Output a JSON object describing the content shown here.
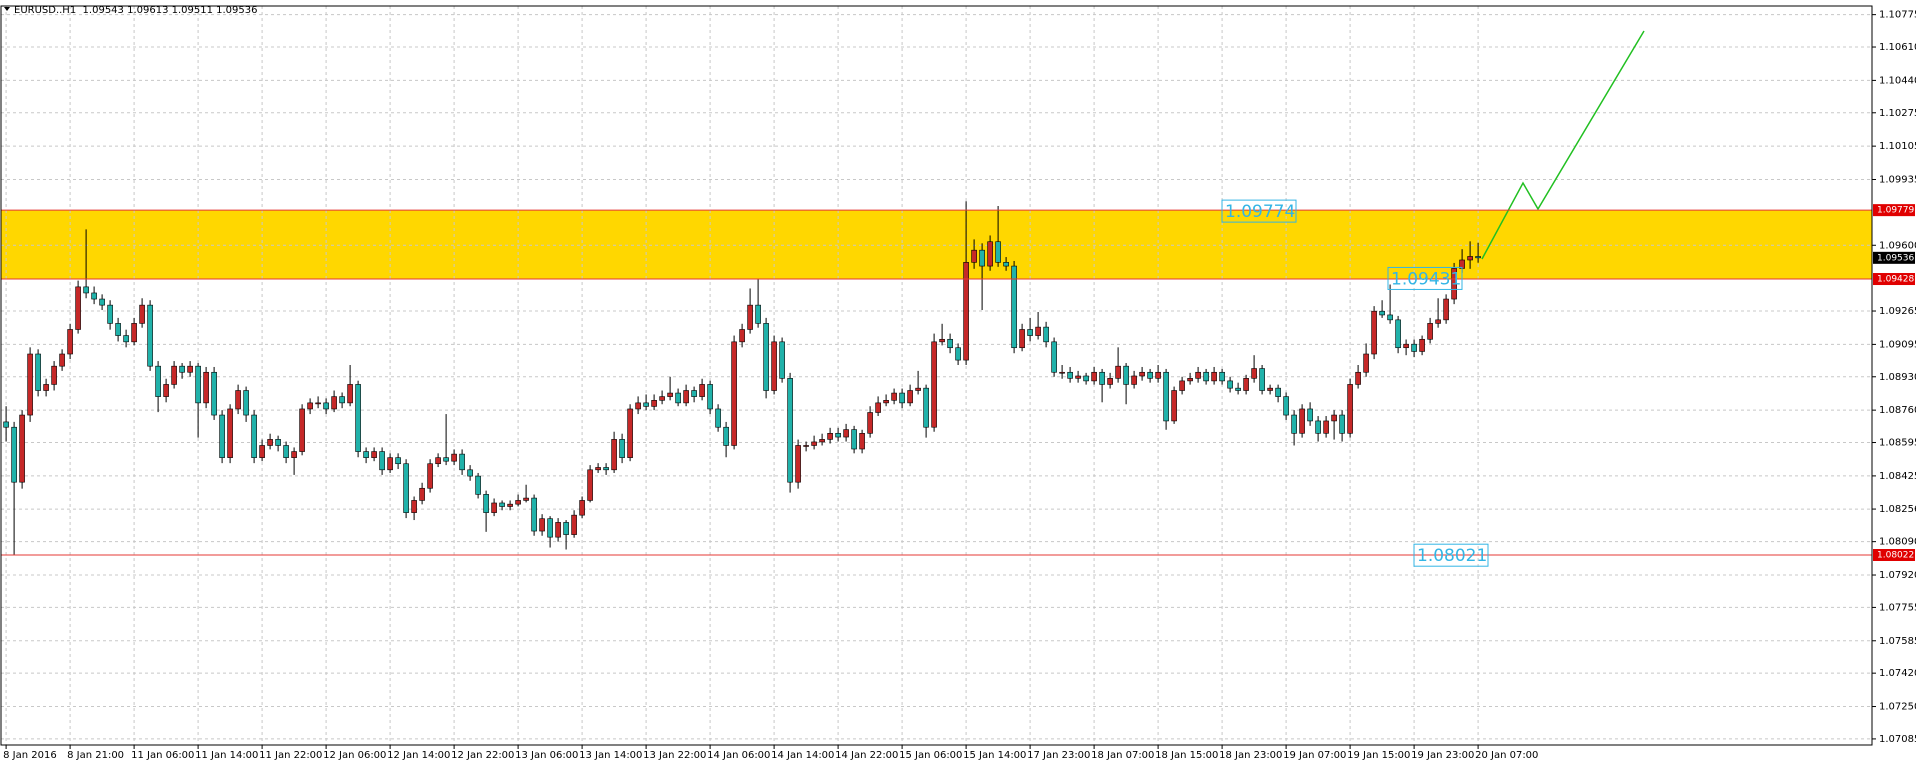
{
  "chart_data": {
    "type": "candlestick",
    "title": "EURUSD..H1  1.09543 1.09613 1.09511 1.09536",
    "up_color": "#c62828",
    "down_color": "#20b2aa",
    "zone": [
      1.09428,
      1.09779
    ],
    "zone_color": "#ffd700",
    "line_color": "#e53935",
    "grid": true,
    "ylim": [
      1.07054,
      1.10819
    ],
    "yticks": [
      {
        "value": 1.10775,
        "label": "1.10775"
      },
      {
        "value": 1.1061,
        "label": "1.10610"
      },
      {
        "value": 1.1044,
        "label": "1.10440"
      },
      {
        "value": 1.10275,
        "label": "1.10275"
      },
      {
        "value": 1.10105,
        "label": "1.10105"
      },
      {
        "value": 1.09935,
        "label": "1.09935"
      },
      {
        "value": 1.096,
        "label": "1.09600"
      },
      {
        "value": 1.09265,
        "label": "1.09265"
      },
      {
        "value": 1.09095,
        "label": "1.09095"
      },
      {
        "value": 1.0893,
        "label": "1.08930"
      },
      {
        "value": 1.0876,
        "label": "1.08760"
      },
      {
        "value": 1.08595,
        "label": "1.08595"
      },
      {
        "value": 1.08425,
        "label": "1.08425"
      },
      {
        "value": 1.08256,
        "label": "1.08256"
      },
      {
        "value": 1.0809,
        "label": "1.08090"
      },
      {
        "value": 1.0792,
        "label": "1.07920"
      },
      {
        "value": 1.07755,
        "label": "1.07755"
      },
      {
        "value": 1.07585,
        "label": "1.07585"
      },
      {
        "value": 1.0742,
        "label": "1.07420"
      },
      {
        "value": 1.0725,
        "label": "1.07250"
      },
      {
        "value": 1.07085,
        "label": "1.07085"
      }
    ],
    "price_tags": [
      {
        "value": 1.09779,
        "color": "#e00000",
        "line": true
      },
      {
        "value": 1.09536,
        "color": "#000000",
        "line": false
      },
      {
        "value": 1.09428,
        "color": "#e00000",
        "line": true
      },
      {
        "value": 1.08022,
        "color": "#e00000",
        "line": true
      }
    ],
    "annotations": [
      1.09774,
      1.09431,
      1.08021
    ],
    "categories": [
      "8 Jan 2016",
      null,
      null,
      null,
      null,
      null,
      null,
      null,
      "8 Jan 21:00",
      null,
      null,
      null,
      null,
      null,
      null,
      null,
      "11 Jan 06:00",
      null,
      null,
      null,
      null,
      null,
      null,
      null,
      "11 Jan 14:00",
      null,
      null,
      null,
      null,
      null,
      null,
      null,
      "11 Jan 22:00",
      null,
      null,
      null,
      null,
      null,
      null,
      null,
      "12 Jan 06:00",
      null,
      null,
      null,
      null,
      null,
      null,
      null,
      "12 Jan 14:00",
      null,
      null,
      null,
      null,
      null,
      null,
      null,
      "12 Jan 22:00",
      null,
      null,
      null,
      null,
      null,
      null,
      null,
      "13 Jan 06:00",
      null,
      null,
      null,
      null,
      null,
      null,
      null,
      "13 Jan 14:00",
      null,
      null,
      null,
      null,
      null,
      null,
      null,
      "13 Jan 22:00",
      null,
      null,
      null,
      null,
      null,
      null,
      null,
      "14 Jan 06:00",
      null,
      null,
      null,
      null,
      null,
      null,
      null,
      "14 Jan 14:00",
      null,
      null,
      null,
      null,
      null,
      null,
      null,
      "14 Jan 22:00",
      null,
      null,
      null,
      null,
      null,
      null,
      null,
      "15 Jan 06:00",
      null,
      null,
      null,
      null,
      null,
      null,
      null,
      "15 Jan 14:00",
      null,
      null,
      null,
      null,
      null,
      null,
      null,
      "17 Jan 23:00",
      null,
      null,
      null,
      null,
      null,
      null,
      null,
      "18 Jan 07:00",
      null,
      null,
      null,
      null,
      null,
      null,
      null,
      "18 Jan 15:00",
      null,
      null,
      null,
      null,
      null,
      null,
      null,
      "18 Jan 23:00",
      null,
      null,
      null,
      null,
      null,
      null,
      null,
      "19 Jan 07:00",
      null,
      null,
      null,
      null,
      null,
      null,
      null,
      "19 Jan 15:00",
      null,
      null,
      null,
      null,
      null,
      null,
      null,
      "19 Jan 23:00",
      null,
      null,
      null,
      null,
      null,
      null,
      null,
      "20 Jan 07:00"
    ],
    "candles": [
      [
        1.087,
        1.0878,
        1.086,
        1.08673
      ],
      [
        1.08673,
        1.087,
        1.0802,
        1.08393
      ],
      [
        1.08393,
        1.0876,
        1.0836,
        1.08735
      ],
      [
        1.08735,
        1.0908,
        1.087,
        1.09046
      ],
      [
        1.09046,
        1.0907,
        1.0883,
        1.0886
      ],
      [
        1.0886,
        1.0892,
        1.0883,
        1.08891
      ],
      [
        1.08891,
        1.0901,
        1.0886,
        1.08984
      ],
      [
        1.08984,
        1.0907,
        1.0896,
        1.09046
      ],
      [
        1.09046,
        1.092,
        1.0902,
        1.09171
      ],
      [
        1.09171,
        1.0942,
        1.0915,
        1.09388
      ],
      [
        1.09388,
        1.09681,
        1.0933,
        1.09357
      ],
      [
        1.09357,
        1.0939,
        1.093,
        1.09326
      ],
      [
        1.09326,
        1.0935,
        1.0927,
        1.09295
      ],
      [
        1.09295,
        1.0932,
        1.0917,
        1.09202
      ],
      [
        1.09202,
        1.0923,
        1.0911,
        1.0914
      ],
      [
        1.0914,
        1.0917,
        1.0908,
        1.09108
      ],
      [
        1.09108,
        1.0923,
        1.0909,
        1.09202
      ],
      [
        1.09202,
        1.0933,
        1.0918,
        1.09295
      ],
      [
        1.09295,
        1.0932,
        1.0896,
        1.08984
      ],
      [
        1.08984,
        1.0901,
        1.0875,
        1.08829
      ],
      [
        1.08829,
        1.0892,
        1.088,
        1.08891
      ],
      [
        1.08891,
        1.0901,
        1.0887,
        1.08984
      ],
      [
        1.08984,
        1.09,
        1.0892,
        1.08953
      ],
      [
        1.08953,
        1.0901,
        1.0893,
        1.08984
      ],
      [
        1.08984,
        1.09,
        1.0862,
        1.08797
      ],
      [
        1.08797,
        1.0898,
        1.0877,
        1.08953
      ],
      [
        1.08953,
        1.0898,
        1.0871,
        1.08735
      ],
      [
        1.08735,
        1.0876,
        1.0849,
        1.08518
      ],
      [
        1.08518,
        1.0879,
        1.0849,
        1.08766
      ],
      [
        1.08766,
        1.0889,
        1.0874,
        1.0886
      ],
      [
        1.0886,
        1.0888,
        1.087,
        1.08735
      ],
      [
        1.08735,
        1.0876,
        1.0849,
        1.08518
      ],
      [
        1.08518,
        1.0861,
        1.085,
        1.0858
      ],
      [
        1.0858,
        1.0864,
        1.0856,
        1.08611
      ],
      [
        1.08611,
        1.0863,
        1.0855,
        1.0858
      ],
      [
        1.0858,
        1.086,
        1.0849,
        1.08518
      ],
      [
        1.08518,
        1.0857,
        1.0843,
        1.08549
      ],
      [
        1.08549,
        1.0879,
        1.0853,
        1.08766
      ],
      [
        1.08766,
        1.0882,
        1.0874,
        1.08797
      ],
      [
        1.08797,
        1.0883,
        1.0877,
        1.08797
      ],
      [
        1.08797,
        1.0882,
        1.0874,
        1.08766
      ],
      [
        1.08766,
        1.0886,
        1.0875,
        1.08829
      ],
      [
        1.08829,
        1.0885,
        1.0877,
        1.08797
      ],
      [
        1.08797,
        1.0899,
        1.0878,
        1.08891
      ],
      [
        1.08891,
        1.0891,
        1.0852,
        1.08549
      ],
      [
        1.08549,
        1.0857,
        1.0849,
        1.08518
      ],
      [
        1.08518,
        1.0857,
        1.085,
        1.08549
      ],
      [
        1.08549,
        1.0857,
        1.0843,
        1.08456
      ],
      [
        1.08456,
        1.0854,
        1.0844,
        1.08518
      ],
      [
        1.08518,
        1.0854,
        1.0846,
        1.08487
      ],
      [
        1.08487,
        1.0851,
        1.0821,
        1.08238
      ],
      [
        1.08238,
        1.0832,
        1.082,
        1.083
      ],
      [
        1.083,
        1.0839,
        1.0828,
        1.08362
      ],
      [
        1.08362,
        1.0851,
        1.0834,
        1.08487
      ],
      [
        1.08487,
        1.0854,
        1.0847,
        1.08518
      ],
      [
        1.08518,
        1.0874,
        1.0848,
        1.085
      ],
      [
        1.085,
        1.0856,
        1.0848,
        1.08536
      ],
      [
        1.08536,
        1.0856,
        1.0843,
        1.08456
      ],
      [
        1.08456,
        1.0848,
        1.084,
        1.08424
      ],
      [
        1.08424,
        1.0844,
        1.0831,
        1.08331
      ],
      [
        1.08331,
        1.0835,
        1.0814,
        1.08238
      ],
      [
        1.08238,
        1.0831,
        1.0822,
        1.08287
      ],
      [
        1.08287,
        1.083,
        1.0825,
        1.08269
      ],
      [
        1.08269,
        1.083,
        1.0825,
        1.08281
      ],
      [
        1.08281,
        1.0833,
        1.0827,
        1.083
      ],
      [
        1.083,
        1.0838,
        1.0829,
        1.08312
      ],
      [
        1.08312,
        1.0833,
        1.0812,
        1.08144
      ],
      [
        1.08144,
        1.0823,
        1.0812,
        1.08207
      ],
      [
        1.08207,
        1.0822,
        1.0806,
        1.08113
      ],
      [
        1.08113,
        1.0821,
        1.0809,
        1.08188
      ],
      [
        1.08188,
        1.082,
        1.0805,
        1.08126
      ],
      [
        1.08126,
        1.0825,
        1.0811,
        1.08225
      ],
      [
        1.08225,
        1.0832,
        1.0821,
        1.083
      ],
      [
        1.083,
        1.0848,
        1.0829,
        1.08456
      ],
      [
        1.08456,
        1.0849,
        1.0844,
        1.08468
      ],
      [
        1.08468,
        1.0849,
        1.0843,
        1.08456
      ],
      [
        1.08456,
        1.0865,
        1.0844,
        1.08611
      ],
      [
        1.08611,
        1.0864,
        1.0849,
        1.08518
      ],
      [
        1.08518,
        1.0879,
        1.085,
        1.08766
      ],
      [
        1.08766,
        1.0883,
        1.0874,
        1.08797
      ],
      [
        1.08797,
        1.0884,
        1.0876,
        1.08779
      ],
      [
        1.08779,
        1.0884,
        1.0876,
        1.0881
      ],
      [
        1.0881,
        1.0886,
        1.0879,
        1.08829
      ],
      [
        1.08829,
        1.0893,
        1.0881,
        1.08847
      ],
      [
        1.08847,
        1.0887,
        1.0878,
        1.08797
      ],
      [
        1.08797,
        1.0889,
        1.0878,
        1.0886
      ],
      [
        1.0886,
        1.0888,
        1.088,
        1.08829
      ],
      [
        1.08829,
        1.0892,
        1.0881,
        1.08891
      ],
      [
        1.08891,
        1.0891,
        1.0874,
        1.08766
      ],
      [
        1.08766,
        1.0879,
        1.0865,
        1.08673
      ],
      [
        1.08673,
        1.087,
        1.0852,
        1.0858
      ],
      [
        1.0858,
        1.0914,
        1.0856,
        1.09108
      ],
      [
        1.09108,
        1.092,
        1.0908,
        1.09171
      ],
      [
        1.09171,
        1.0938,
        1.0915,
        1.09295
      ],
      [
        1.09295,
        1.0943,
        1.0918,
        1.09202
      ],
      [
        1.09202,
        1.0923,
        1.0882,
        1.0886
      ],
      [
        1.0886,
        1.0914,
        1.0884,
        1.09108
      ],
      [
        1.09108,
        1.0913,
        1.089,
        1.08922
      ],
      [
        1.08922,
        1.0895,
        1.0834,
        1.08393
      ],
      [
        1.08393,
        1.0861,
        1.0836,
        1.0858
      ],
      [
        1.0858,
        1.086,
        1.0855,
        1.0858
      ],
      [
        1.0858,
        1.0863,
        1.0856,
        1.08598
      ],
      [
        1.08598,
        1.0864,
        1.0858,
        1.08611
      ],
      [
        1.08611,
        1.0867,
        1.0859,
        1.08642
      ],
      [
        1.08642,
        1.0867,
        1.086,
        1.08623
      ],
      [
        1.08623,
        1.0869,
        1.086,
        1.08661
      ],
      [
        1.08661,
        1.0868,
        1.0854,
        1.08562
      ],
      [
        1.08562,
        1.0866,
        1.0854,
        1.08642
      ],
      [
        1.08642,
        1.0878,
        1.0862,
        1.08748
      ],
      [
        1.08748,
        1.0883,
        1.0873,
        1.08797
      ],
      [
        1.08797,
        1.0884,
        1.0878,
        1.0881
      ],
      [
        1.0881,
        1.0887,
        1.0879,
        1.08847
      ],
      [
        1.08847,
        1.0887,
        1.0877,
        1.08797
      ],
      [
        1.08797,
        1.0889,
        1.0878,
        1.0886
      ],
      [
        1.0886,
        1.0896,
        1.0884,
        1.08872
      ],
      [
        1.08872,
        1.0889,
        1.0862,
        1.08673
      ],
      [
        1.08673,
        1.0915,
        1.0865,
        1.09108
      ],
      [
        1.09108,
        1.092,
        1.0909,
        1.09121
      ],
      [
        1.09121,
        1.0915,
        1.0905,
        1.09078
      ],
      [
        1.09078,
        1.091,
        1.0899,
        1.09015
      ],
      [
        1.09015,
        1.09824,
        1.0899,
        1.09513
      ],
      [
        1.09513,
        1.0963,
        1.0948,
        1.09575
      ],
      [
        1.09575,
        1.0961,
        1.0927,
        1.09494
      ],
      [
        1.09494,
        1.0965,
        1.0947,
        1.09618
      ],
      [
        1.09618,
        1.098,
        1.0949,
        1.09513
      ],
      [
        1.09513,
        1.0954,
        1.0947,
        1.09494
      ],
      [
        1.09494,
        1.0952,
        1.0905,
        1.09078
      ],
      [
        1.09078,
        1.092,
        1.0906,
        1.09171
      ],
      [
        1.09171,
        1.0923,
        1.0911,
        1.0914
      ],
      [
        1.0914,
        1.0926,
        1.0912,
        1.09183
      ],
      [
        1.09183,
        1.0921,
        1.0908,
        1.09108
      ],
      [
        1.09108,
        1.0913,
        1.0893,
        1.08953
      ],
      [
        1.08953,
        1.0899,
        1.0892,
        1.08953
      ],
      [
        1.08953,
        1.0898,
        1.089,
        1.08922
      ],
      [
        1.08922,
        1.0896,
        1.089,
        1.08934
      ],
      [
        1.08934,
        1.0895,
        1.0889,
        1.08909
      ],
      [
        1.08909,
        1.0898,
        1.0889,
        1.08953
      ],
      [
        1.08953,
        1.0897,
        1.088,
        1.08891
      ],
      [
        1.08891,
        1.0895,
        1.0887,
        1.08922
      ],
      [
        1.08922,
        1.0908,
        1.089,
        1.08984
      ],
      [
        1.08984,
        1.09,
        1.0879,
        1.08891
      ],
      [
        1.08891,
        1.0896,
        1.0887,
        1.08934
      ],
      [
        1.08934,
        1.0898,
        1.0891,
        1.08953
      ],
      [
        1.08953,
        1.0897,
        1.089,
        1.08922
      ],
      [
        1.08922,
        1.0899,
        1.089,
        1.08953
      ],
      [
        1.08953,
        1.0897,
        1.0866,
        1.08705
      ],
      [
        1.08705,
        1.0888,
        1.0869,
        1.0886
      ],
      [
        1.0886,
        1.0893,
        1.0884,
        1.08909
      ],
      [
        1.08909,
        1.0895,
        1.0889,
        1.08922
      ],
      [
        1.08922,
        1.0898,
        1.089,
        1.08953
      ],
      [
        1.08953,
        1.0897,
        1.0889,
        1.08909
      ],
      [
        1.08909,
        1.0898,
        1.0889,
        1.08953
      ],
      [
        1.08953,
        1.0897,
        1.0889,
        1.08909
      ],
      [
        1.08909,
        1.0893,
        1.0885,
        1.08872
      ],
      [
        1.08872,
        1.089,
        1.0884,
        1.0886
      ],
      [
        1.0886,
        1.0894,
        1.0884,
        1.08922
      ],
      [
        1.08922,
        1.0904,
        1.089,
        1.08972
      ],
      [
        1.08972,
        1.0899,
        1.0884,
        1.0886
      ],
      [
        1.0886,
        1.0889,
        1.0884,
        1.08872
      ],
      [
        1.08872,
        1.0889,
        1.088,
        1.08829
      ],
      [
        1.08829,
        1.0885,
        1.0871,
        1.08735
      ],
      [
        1.08735,
        1.0876,
        1.0858,
        1.08642
      ],
      [
        1.08642,
        1.0879,
        1.0862,
        1.08766
      ],
      [
        1.08766,
        1.088,
        1.0868,
        1.08705
      ],
      [
        1.08705,
        1.0873,
        1.086,
        1.08642
      ],
      [
        1.08642,
        1.0873,
        1.0862,
        1.08705
      ],
      [
        1.08705,
        1.0876,
        1.0861,
        1.08735
      ],
      [
        1.08735,
        1.0876,
        1.086,
        1.08642
      ],
      [
        1.08642,
        1.0892,
        1.0862,
        1.08891
      ],
      [
        1.08891,
        1.0899,
        1.0887,
        1.08953
      ],
      [
        1.08953,
        1.091,
        1.0893,
        1.09046
      ],
      [
        1.09046,
        1.0929,
        1.0902,
        1.09264
      ],
      [
        1.09264,
        1.0932,
        1.0923,
        1.09245
      ],
      [
        1.09245,
        1.094,
        1.092,
        1.0922
      ],
      [
        1.0922,
        1.0924,
        1.0905,
        1.09078
      ],
      [
        1.09078,
        1.0912,
        1.0904,
        1.09096
      ],
      [
        1.09096,
        1.0912,
        1.0903,
        1.09059
      ],
      [
        1.09059,
        1.0914,
        1.0904,
        1.09121
      ],
      [
        1.09121,
        1.0923,
        1.091,
        1.09202
      ],
      [
        1.09202,
        1.0933,
        1.0918,
        1.0922
      ],
      [
        1.0922,
        1.0935,
        1.092,
        1.09326
      ],
      [
        1.09326,
        1.0951,
        1.093,
        1.09482
      ],
      [
        1.09482,
        1.0958,
        1.0946,
        1.09525
      ],
      [
        1.09525,
        1.0962,
        1.0948,
        1.09543
      ],
      [
        1.09543,
        1.09613,
        1.09511,
        1.09536
      ]
    ]
  }
}
